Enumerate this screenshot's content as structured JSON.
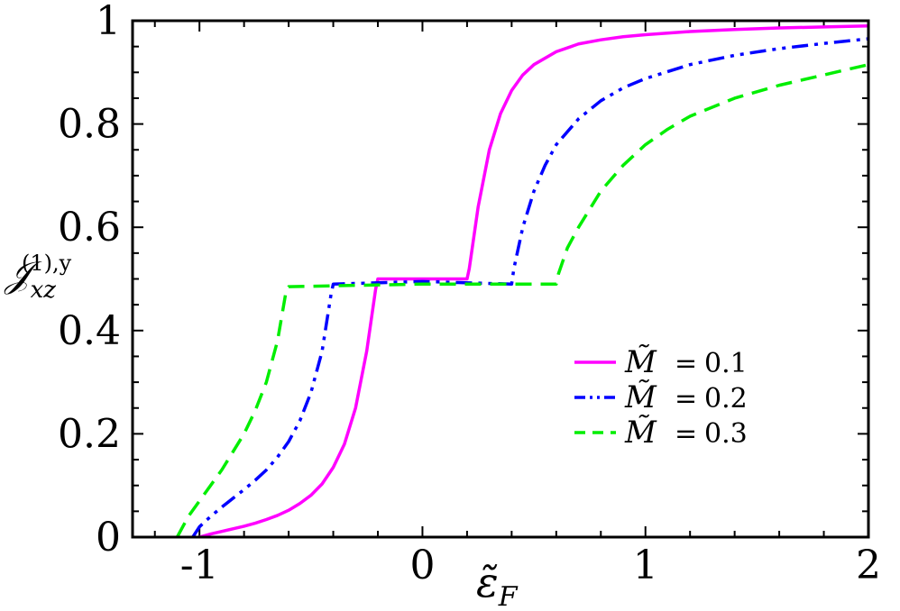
{
  "chart_data": {
    "type": "line",
    "xlabel": "ε̃",
    "xlabel_sub": "F",
    "ylabel": "𝒥",
    "ylabel_sub": "xz",
    "ylabel_sup": "(1),y",
    "xlim": [
      -1.3,
      2
    ],
    "ylim": [
      0,
      1
    ],
    "xticks": [
      -1,
      0,
      1,
      2
    ],
    "xtick_labels": [
      "-1",
      "0",
      "1",
      "2"
    ],
    "yticks": [
      0,
      0.2,
      0.4,
      0.6,
      0.8,
      1
    ],
    "ytick_labels": [
      "0",
      "0.2",
      "0.4",
      "0.6",
      "0.8",
      "1"
    ],
    "grid": false,
    "legend_position": "center-right",
    "series": [
      {
        "name": "M̃ = 0.1",
        "legend_symbol": "M̃",
        "legend_eq": "=",
        "legend_value": "0.1",
        "color": "#ff00ff",
        "dash": "solid",
        "x": [
          -1.0,
          -0.95,
          -0.9,
          -0.85,
          -0.8,
          -0.75,
          -0.7,
          -0.65,
          -0.6,
          -0.55,
          -0.5,
          -0.45,
          -0.4,
          -0.35,
          -0.3,
          -0.25,
          -0.21,
          -0.2,
          0.0,
          0.2,
          0.21,
          0.25,
          0.3,
          0.35,
          0.4,
          0.45,
          0.5,
          0.6,
          0.7,
          0.8,
          0.9,
          1.0,
          1.2,
          1.4,
          1.6,
          1.8,
          2.0
        ],
        "y": [
          0.0,
          0.006,
          0.011,
          0.016,
          0.021,
          0.027,
          0.034,
          0.042,
          0.052,
          0.065,
          0.081,
          0.103,
          0.135,
          0.18,
          0.25,
          0.36,
          0.48,
          0.5,
          0.5,
          0.5,
          0.52,
          0.64,
          0.75,
          0.82,
          0.865,
          0.895,
          0.915,
          0.94,
          0.955,
          0.963,
          0.969,
          0.973,
          0.979,
          0.983,
          0.986,
          0.988,
          0.99
        ]
      },
      {
        "name": "M̃ = 0.2",
        "legend_symbol": "M̃",
        "legend_eq": "=",
        "legend_value": "0.2",
        "color": "#0000ff",
        "dash": "dash-dot-dot",
        "x": [
          -1.03,
          -1.0,
          -0.95,
          -0.9,
          -0.85,
          -0.8,
          -0.75,
          -0.7,
          -0.65,
          -0.6,
          -0.55,
          -0.5,
          -0.45,
          -0.41,
          -0.4,
          0.0,
          0.4,
          0.41,
          0.45,
          0.5,
          0.55,
          0.6,
          0.7,
          0.8,
          0.9,
          1.0,
          1.2,
          1.4,
          1.6,
          1.8,
          2.0
        ],
        "y": [
          0.0,
          0.02,
          0.04,
          0.058,
          0.075,
          0.092,
          0.11,
          0.13,
          0.155,
          0.185,
          0.225,
          0.28,
          0.36,
          0.47,
          0.49,
          0.495,
          0.49,
          0.52,
          0.6,
          0.67,
          0.72,
          0.76,
          0.81,
          0.845,
          0.87,
          0.888,
          0.915,
          0.933,
          0.946,
          0.956,
          0.965
        ]
      },
      {
        "name": "M̃ = 0.3",
        "legend_symbol": "M̃",
        "legend_eq": "=",
        "legend_value": "0.3",
        "color": "#00ee00",
        "dash": "dashed",
        "x": [
          -1.1,
          -1.05,
          -1.0,
          -0.95,
          -0.9,
          -0.85,
          -0.8,
          -0.75,
          -0.7,
          -0.65,
          -0.61,
          -0.6,
          0.0,
          0.6,
          0.61,
          0.65,
          0.7,
          0.8,
          0.9,
          1.0,
          1.1,
          1.2,
          1.4,
          1.6,
          1.8,
          2.0
        ],
        "y": [
          0.0,
          0.04,
          0.07,
          0.1,
          0.13,
          0.165,
          0.2,
          0.245,
          0.3,
          0.38,
          0.48,
          0.485,
          0.49,
          0.49,
          0.51,
          0.56,
          0.6,
          0.67,
          0.72,
          0.76,
          0.79,
          0.815,
          0.85,
          0.875,
          0.895,
          0.915
        ]
      }
    ]
  }
}
